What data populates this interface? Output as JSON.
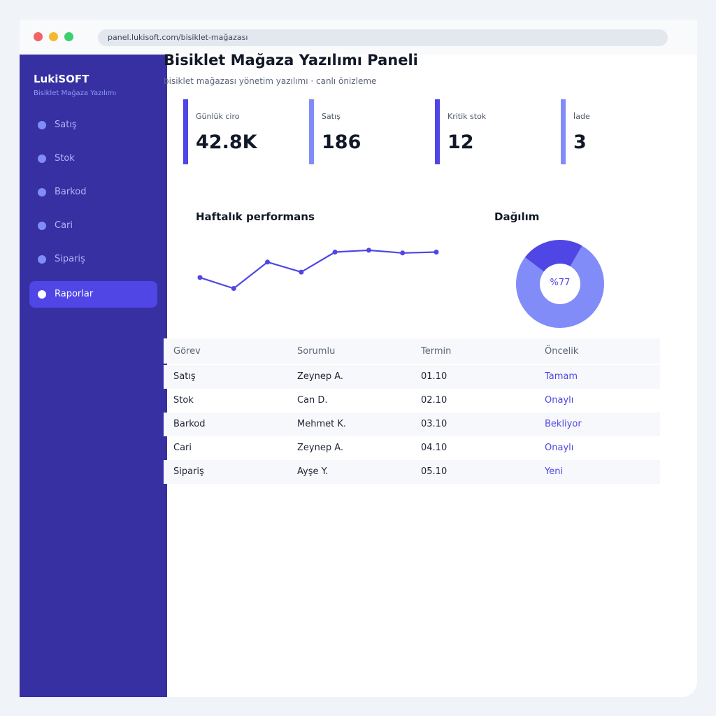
{
  "browser": {
    "url": "panel.lukisoft.com/bisiklet-mağazası"
  },
  "sidebar": {
    "brand": "LukiSOFT",
    "brand_sub": "Bisiklet Mağaza Yazılımı",
    "items": [
      {
        "label": "Satış",
        "active": false
      },
      {
        "label": "Stok",
        "active": false
      },
      {
        "label": "Barkod",
        "active": false
      },
      {
        "label": "Cari",
        "active": false
      },
      {
        "label": "Sipariş",
        "active": false
      },
      {
        "label": "Raporlar",
        "active": true
      }
    ]
  },
  "header": {
    "title": "Bisiklet Mağaza Yazılımı Paneli",
    "subtitle": "bisiklet mağazası yönetim yazılımı · canlı önizleme"
  },
  "kpis": [
    {
      "label": "Günlük ciro",
      "value": "42.8K",
      "color": "#4f46e5"
    },
    {
      "label": "Satış",
      "value": "186",
      "color": "#818cf8"
    },
    {
      "label": "Kritik stok",
      "value": "12",
      "color": "#4f46e5"
    },
    {
      "label": "İade",
      "value": "3",
      "color": "#818cf8"
    }
  ],
  "charts": {
    "performance_title": "Haftalık performans",
    "distribution_title": "Dağılım",
    "distribution_label": "%77"
  },
  "chart_data": [
    {
      "type": "line",
      "title": "Haftalık performans",
      "x": [
        1,
        2,
        3,
        4,
        5,
        6,
        7,
        8
      ],
      "series": [
        {
          "values": [
            47,
            35,
            64,
            53,
            75,
            77,
            74,
            75
          ]
        }
      ],
      "ylim": [
        0,
        100
      ],
      "color": "#4f46e5"
    },
    {
      "type": "pie",
      "title": "Dağılım",
      "values": [
        77,
        23
      ],
      "colors": [
        "#818cf8",
        "#4f46e5"
      ],
      "center_label": "%77"
    }
  ],
  "table": {
    "columns": [
      "Görev",
      "Sorumlu",
      "Termin",
      "Öncelik"
    ],
    "rows": [
      [
        "Satış",
        "Zeynep A.",
        "01.10",
        "Tamam"
      ],
      [
        "Stok",
        "Can D.",
        "02.10",
        "Onaylı"
      ],
      [
        "Barkod",
        "Mehmet K.",
        "03.10",
        "Bekliyor"
      ],
      [
        "Cari",
        "Zeynep A.",
        "04.10",
        "Onaylı"
      ],
      [
        "Sipariş",
        "Ayşe Y.",
        "05.10",
        "Yeni"
      ]
    ]
  }
}
